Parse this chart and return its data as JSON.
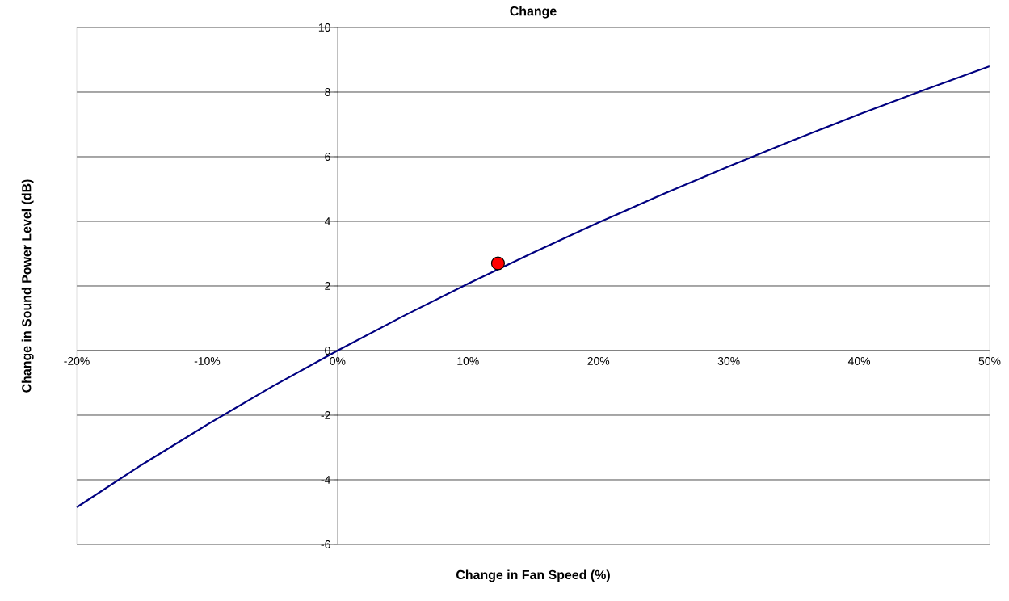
{
  "chart_data": {
    "type": "line",
    "title": "Change",
    "xlabel": "Change in Fan Speed (%)",
    "ylabel": "Change in Sound Power Level (dB)",
    "xlim": [
      -20,
      50
    ],
    "ylim": [
      -6,
      10
    ],
    "xticks": [
      {
        "value": -20,
        "label": "-20%"
      },
      {
        "value": -10,
        "label": "-10%"
      },
      {
        "value": 0,
        "label": "0%"
      },
      {
        "value": 10,
        "label": "10%"
      },
      {
        "value": 20,
        "label": "20%"
      },
      {
        "value": 30,
        "label": "30%"
      },
      {
        "value": 40,
        "label": "40%"
      },
      {
        "value": 50,
        "label": "50%"
      }
    ],
    "yticks": [
      -6,
      -4,
      -2,
      0,
      2,
      4,
      6,
      8,
      10
    ],
    "grid": "y",
    "series": [
      {
        "color": "#000080",
        "x": [
          -20,
          -15,
          -10,
          -5,
          0,
          5,
          10,
          15,
          20,
          25,
          30,
          35,
          40,
          45,
          50
        ],
        "values": [
          -4.85,
          -3.53,
          -2.29,
          -1.11,
          0,
          1.06,
          2.07,
          3.03,
          3.96,
          4.85,
          5.7,
          6.52,
          7.31,
          8.07,
          8.8
        ]
      },
      {
        "type": "scatter",
        "marker": "circle",
        "color": "#ff0000",
        "x": [
          12.3
        ],
        "values": [
          2.7
        ]
      }
    ]
  }
}
